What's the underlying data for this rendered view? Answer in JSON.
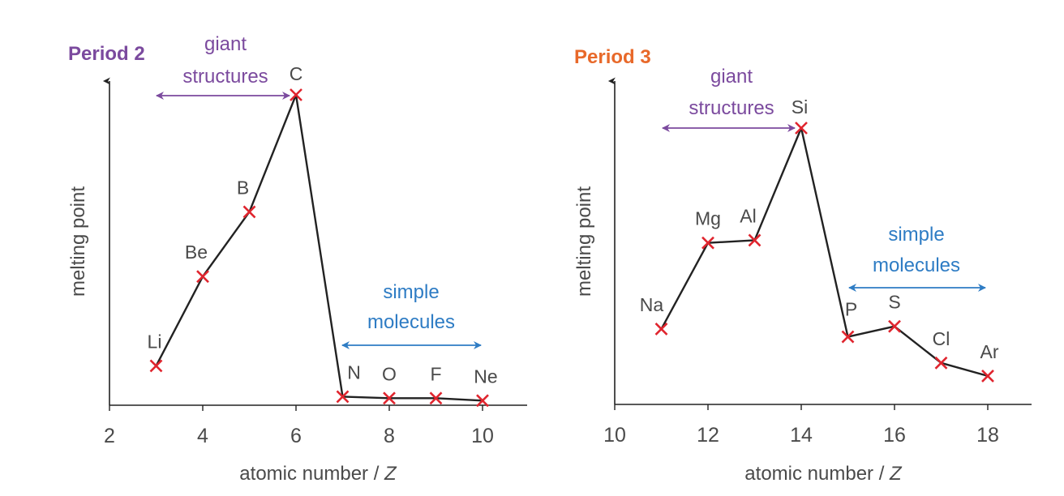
{
  "colors": {
    "purple": "#7b4a9e",
    "orange": "#e8692a",
    "blue": "#2e7cc4",
    "marker": "#e0252e",
    "line": "#222222"
  },
  "chart_data": [
    {
      "type": "line",
      "title": "Period 2",
      "xlabel": "atomic number / ",
      "xlabel_var": "Z",
      "ylabel": "melting point",
      "xlim": [
        2,
        11
      ],
      "xticks": [
        2,
        4,
        6,
        8,
        10
      ],
      "ylim": [
        0,
        100
      ],
      "grid": false,
      "points": [
        {
          "x": 3,
          "y": 12,
          "label": "Li"
        },
        {
          "x": 4,
          "y": 41,
          "label": "Be"
        },
        {
          "x": 5,
          "y": 62,
          "label": "B"
        },
        {
          "x": 6,
          "y": 100,
          "label": "C"
        },
        {
          "x": 7,
          "y": 2,
          "label": "N"
        },
        {
          "x": 8,
          "y": 1.5,
          "label": "O"
        },
        {
          "x": 9,
          "y": 1.5,
          "label": "F"
        },
        {
          "x": 10,
          "y": 0.7,
          "label": "Ne"
        }
      ],
      "annotations": [
        {
          "text": [
            "giant",
            "structures"
          ],
          "from": 3,
          "to": 6,
          "color": "purple"
        },
        {
          "text": [
            "simple",
            "molecules"
          ],
          "from": 7,
          "to": 10,
          "color": "blue"
        }
      ]
    },
    {
      "type": "line",
      "title": "Period 3",
      "xlabel": "atomic number / ",
      "xlabel_var": "Z",
      "ylabel": "melting point",
      "xlim": [
        10,
        19
      ],
      "xticks": [
        10,
        12,
        14,
        16,
        18
      ],
      "ylim": [
        0,
        100
      ],
      "grid": false,
      "points": [
        {
          "x": 11,
          "y": 23,
          "label": "Na"
        },
        {
          "x": 12,
          "y": 56,
          "label": "Mg"
        },
        {
          "x": 13,
          "y": 57,
          "label": "Al"
        },
        {
          "x": 14,
          "y": 100,
          "label": "Si"
        },
        {
          "x": 15,
          "y": 20,
          "label": "P"
        },
        {
          "x": 16,
          "y": 24,
          "label": "S"
        },
        {
          "x": 17,
          "y": 10,
          "label": "Cl"
        },
        {
          "x": 18,
          "y": 5,
          "label": "Ar"
        }
      ],
      "annotations": [
        {
          "text": [
            "giant",
            "structures"
          ],
          "from": 11,
          "to": 14,
          "color": "purple"
        },
        {
          "text": [
            "simple",
            "molecules"
          ],
          "from": 15,
          "to": 18,
          "color": "blue"
        }
      ]
    }
  ]
}
